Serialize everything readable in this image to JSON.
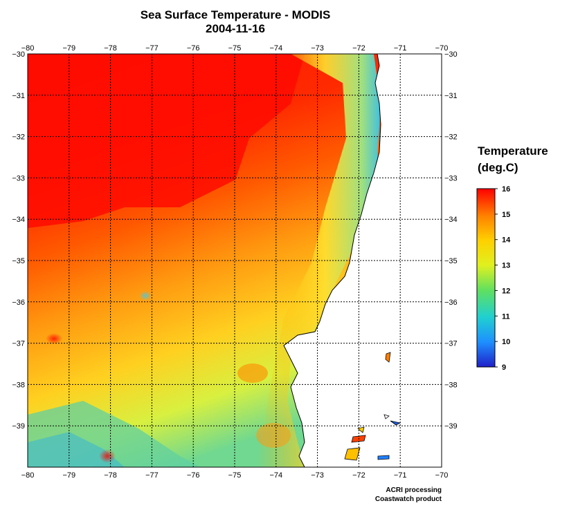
{
  "header": {
    "title": "Sea Surface Temperature - MODIS",
    "date": "2004-11-16"
  },
  "map": {
    "lon_ticks": [
      "−80",
      "−79",
      "−78",
      "−77",
      "−76",
      "−75",
      "−74",
      "−73",
      "−72",
      "−71",
      "−70"
    ],
    "lat_ticks": [
      "−30",
      "−31",
      "−32",
      "−33",
      "−34",
      "−35",
      "−36",
      "−37",
      "−38",
      "−39"
    ],
    "lon_range": [
      -80,
      -70
    ],
    "lat_range": [
      -40,
      -30
    ],
    "grid_style": "dotted",
    "colors": {
      "land": "#ffffff",
      "coastline": "#000000",
      "grid": "#000000"
    }
  },
  "legend": {
    "title_line1": "Temperature",
    "title_line2": "(deg.C)",
    "tick_labels": [
      "16",
      "15",
      "14",
      "13",
      "12",
      "11",
      "10",
      "9"
    ],
    "min": 9,
    "max": 16,
    "colors": [
      "#2020c8",
      "#1e90ff",
      "#20d0d0",
      "#60e060",
      "#e0f020",
      "#ffd000",
      "#ff8000",
      "#ff0000"
    ]
  },
  "credits": {
    "line1": "ACRI processing",
    "line2": "Coastwatch product"
  }
}
